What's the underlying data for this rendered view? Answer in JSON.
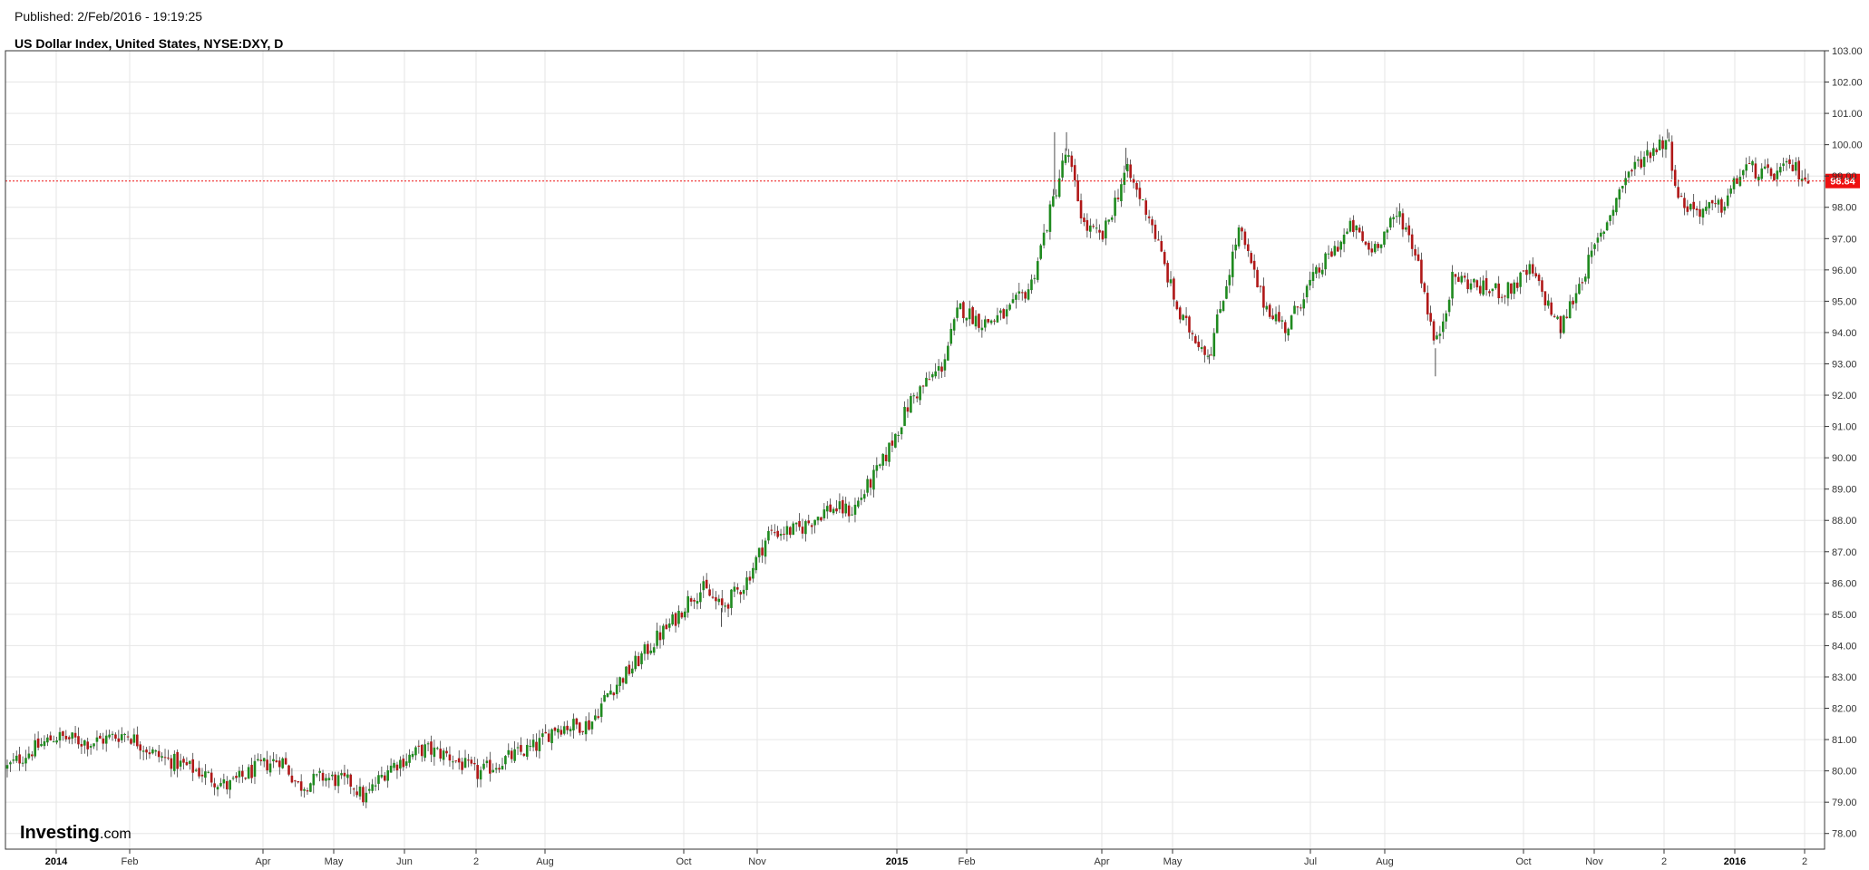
{
  "header": {
    "published": "Published: 2/Feb/2016 - 19:19:25",
    "title": "US Dollar Index, United States, NYSE:DXY, D"
  },
  "logo": {
    "brand": "Investing",
    "suffix": ".com"
  },
  "colors": {
    "up": "#1f8a1f",
    "down": "#b01818",
    "last_price": "#ee1111",
    "grid": "#e6e6e6"
  },
  "chart_data": {
    "type": "candlestick",
    "title": "US Dollar Index, United States, NYSE:DXY, D",
    "ylim": [
      77.5,
      103.0
    ],
    "y_ticks": [
      "78.00",
      "79.00",
      "80.00",
      "81.00",
      "82.00",
      "83.00",
      "84.00",
      "85.00",
      "86.00",
      "87.00",
      "88.00",
      "89.00",
      "90.00",
      "91.00",
      "92.00",
      "93.00",
      "94.00",
      "95.00",
      "96.00",
      "97.00",
      "98.00",
      "99.00",
      "100.00",
      "101.00",
      "102.00",
      "103.00"
    ],
    "x_ticks": [
      {
        "label": "2014",
        "bold": true
      },
      {
        "label": "Feb"
      },
      {
        "label": "Apr"
      },
      {
        "label": "May"
      },
      {
        "label": "Jun"
      },
      {
        "label": "2"
      },
      {
        "label": "Aug"
      },
      {
        "label": "Oct"
      },
      {
        "label": "Nov"
      },
      {
        "label": "2015",
        "bold": true
      },
      {
        "label": "Feb"
      },
      {
        "label": "Apr"
      },
      {
        "label": "May"
      },
      {
        "label": "Jul"
      },
      {
        "label": "Aug"
      },
      {
        "label": "Oct"
      },
      {
        "label": "Nov"
      },
      {
        "label": "2"
      },
      {
        "label": "2016",
        "bold": true
      },
      {
        "label": "2"
      }
    ],
    "last_price": "98.84",
    "last_value": 98.84,
    "close_path": [
      [
        0,
        80.1
      ],
      [
        14,
        80.5
      ],
      [
        40,
        81.1
      ],
      [
        70,
        80.9
      ],
      [
        100,
        81.2
      ],
      [
        125,
        80.5
      ],
      [
        160,
        80.0
      ],
      [
        185,
        79.5
      ],
      [
        210,
        80.1
      ],
      [
        230,
        80.4
      ],
      [
        245,
        79.5
      ],
      [
        265,
        79.8
      ],
      [
        290,
        79.6
      ],
      [
        300,
        79.1
      ],
      [
        320,
        80.1
      ],
      [
        350,
        80.7
      ],
      [
        370,
        80.5
      ],
      [
        395,
        79.9
      ],
      [
        420,
        80.4
      ],
      [
        445,
        80.8
      ],
      [
        460,
        81.4
      ],
      [
        490,
        81.5
      ],
      [
        505,
        82.5
      ],
      [
        525,
        83.3
      ],
      [
        545,
        84.2
      ],
      [
        560,
        84.8
      ],
      [
        575,
        85.6
      ],
      [
        585,
        85.8
      ],
      [
        600,
        85.2
      ],
      [
        620,
        86.0
      ],
      [
        640,
        87.6
      ],
      [
        665,
        87.7
      ],
      [
        690,
        88.4
      ],
      [
        710,
        88.3
      ],
      [
        735,
        89.8
      ],
      [
        760,
        91.9
      ],
      [
        785,
        92.9
      ],
      [
        800,
        94.8
      ],
      [
        820,
        94.3
      ],
      [
        840,
        94.6
      ],
      [
        860,
        95.5
      ],
      [
        880,
        98.4
      ],
      [
        890,
        99.8
      ],
      [
        905,
        97.4
      ],
      [
        920,
        97.0
      ],
      [
        940,
        99.2
      ],
      [
        960,
        97.7
      ],
      [
        985,
        94.5
      ],
      [
        1010,
        93.3
      ],
      [
        1035,
        97.3
      ],
      [
        1055,
        95.0
      ],
      [
        1075,
        94.1
      ],
      [
        1090,
        95.3
      ],
      [
        1110,
        96.4
      ],
      [
        1130,
        97.4
      ],
      [
        1145,
        96.6
      ],
      [
        1170,
        97.8
      ],
      [
        1185,
        96.4
      ],
      [
        1200,
        93.5
      ],
      [
        1215,
        95.8
      ],
      [
        1240,
        95.4
      ],
      [
        1260,
        95.3
      ],
      [
        1280,
        96.0
      ],
      [
        1305,
        94.1
      ],
      [
        1320,
        95.5
      ],
      [
        1340,
        97.2
      ],
      [
        1360,
        99.0
      ],
      [
        1380,
        99.8
      ],
      [
        1395,
        100.2
      ],
      [
        1405,
        98.2
      ],
      [
        1420,
        97.9
      ],
      [
        1440,
        98.0
      ],
      [
        1460,
        99.3
      ],
      [
        1480,
        99.0
      ],
      [
        1500,
        99.3
      ],
      [
        1514,
        98.84
      ]
    ],
    "spikes": [
      {
        "x": 880,
        "hi": 100.4
      },
      {
        "x": 890,
        "hi": 100.4
      },
      {
        "x": 940,
        "hi": 99.9
      },
      {
        "x": 1200,
        "lo": 92.6
      },
      {
        "x": 1010,
        "lo": 93.0
      },
      {
        "x": 1395,
        "hi": 100.5
      },
      {
        "x": 1305,
        "lo": 93.8
      },
      {
        "x": 600,
        "lo": 84.6
      }
    ]
  }
}
